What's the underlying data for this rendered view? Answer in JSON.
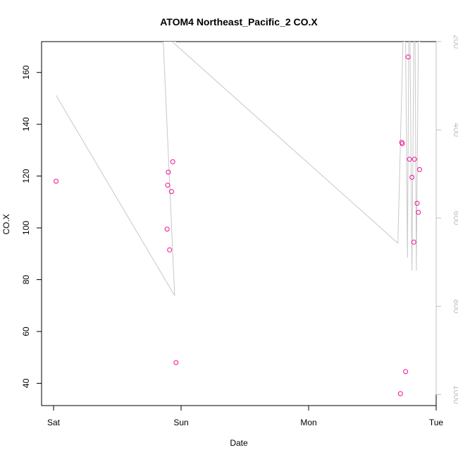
{
  "chart_data": {
    "type": "scatter",
    "title": "ATOM4 Northeast_Pacific_2 CO.X",
    "xlabel": "Date",
    "ylabel": "CO.X",
    "x_ticks": [
      "Sat",
      "Sun",
      "Mon",
      "Tue"
    ],
    "y_ticks": [
      40,
      60,
      80,
      100,
      120,
      140,
      160
    ],
    "y_right_ticks": [
      200,
      400,
      600,
      800,
      1000
    ],
    "xlim": [
      "Sat",
      "Tue"
    ],
    "ylim": [
      31.4,
      171.9
    ],
    "y_right_lim": [
      200,
      1025
    ],
    "y_right_reversed": true,
    "grid": false,
    "colors": {
      "points": "#ee1199",
      "line": "#c8c8c8",
      "axis": "#000000",
      "right_axis": "#c0c0c0"
    },
    "series": [
      {
        "marker": "open-circle",
        "axis": "left",
        "x_days": [
          0.02,
          0.89,
          0.895,
          0.9,
          0.91,
          0.925,
          0.935,
          0.96,
          2.72,
          2.73,
          2.735,
          2.76,
          2.78,
          2.79,
          2.81,
          2.825,
          2.83,
          2.85,
          2.86,
          2.87
        ],
        "y": [
          118,
          99.5,
          116.5,
          121.5,
          91.5,
          114,
          125.5,
          48,
          36,
          133,
          132.5,
          44.5,
          166,
          126.5,
          119.5,
          94.5,
          126.5,
          109.5,
          106,
          122.5
        ]
      },
      {
        "marker": "line",
        "axis": "right",
        "x_days": [
          0.02,
          0.95,
          0.86,
          0.88,
          0.935,
          0.96,
          0.88,
          0.895,
          0.905,
          0.93,
          2.7,
          2.74,
          2.76,
          2.775,
          2.785,
          2.795,
          2.81,
          2.825,
          2.835,
          2.845,
          2.86,
          2.875
        ],
        "y": [
          322,
          776,
          200,
          200,
          200,
          200,
          200,
          200,
          200,
          200,
          657,
          200,
          200,
          690,
          200,
          200,
          719,
          200,
          200,
          719,
          200,
          200
        ]
      }
    ]
  }
}
